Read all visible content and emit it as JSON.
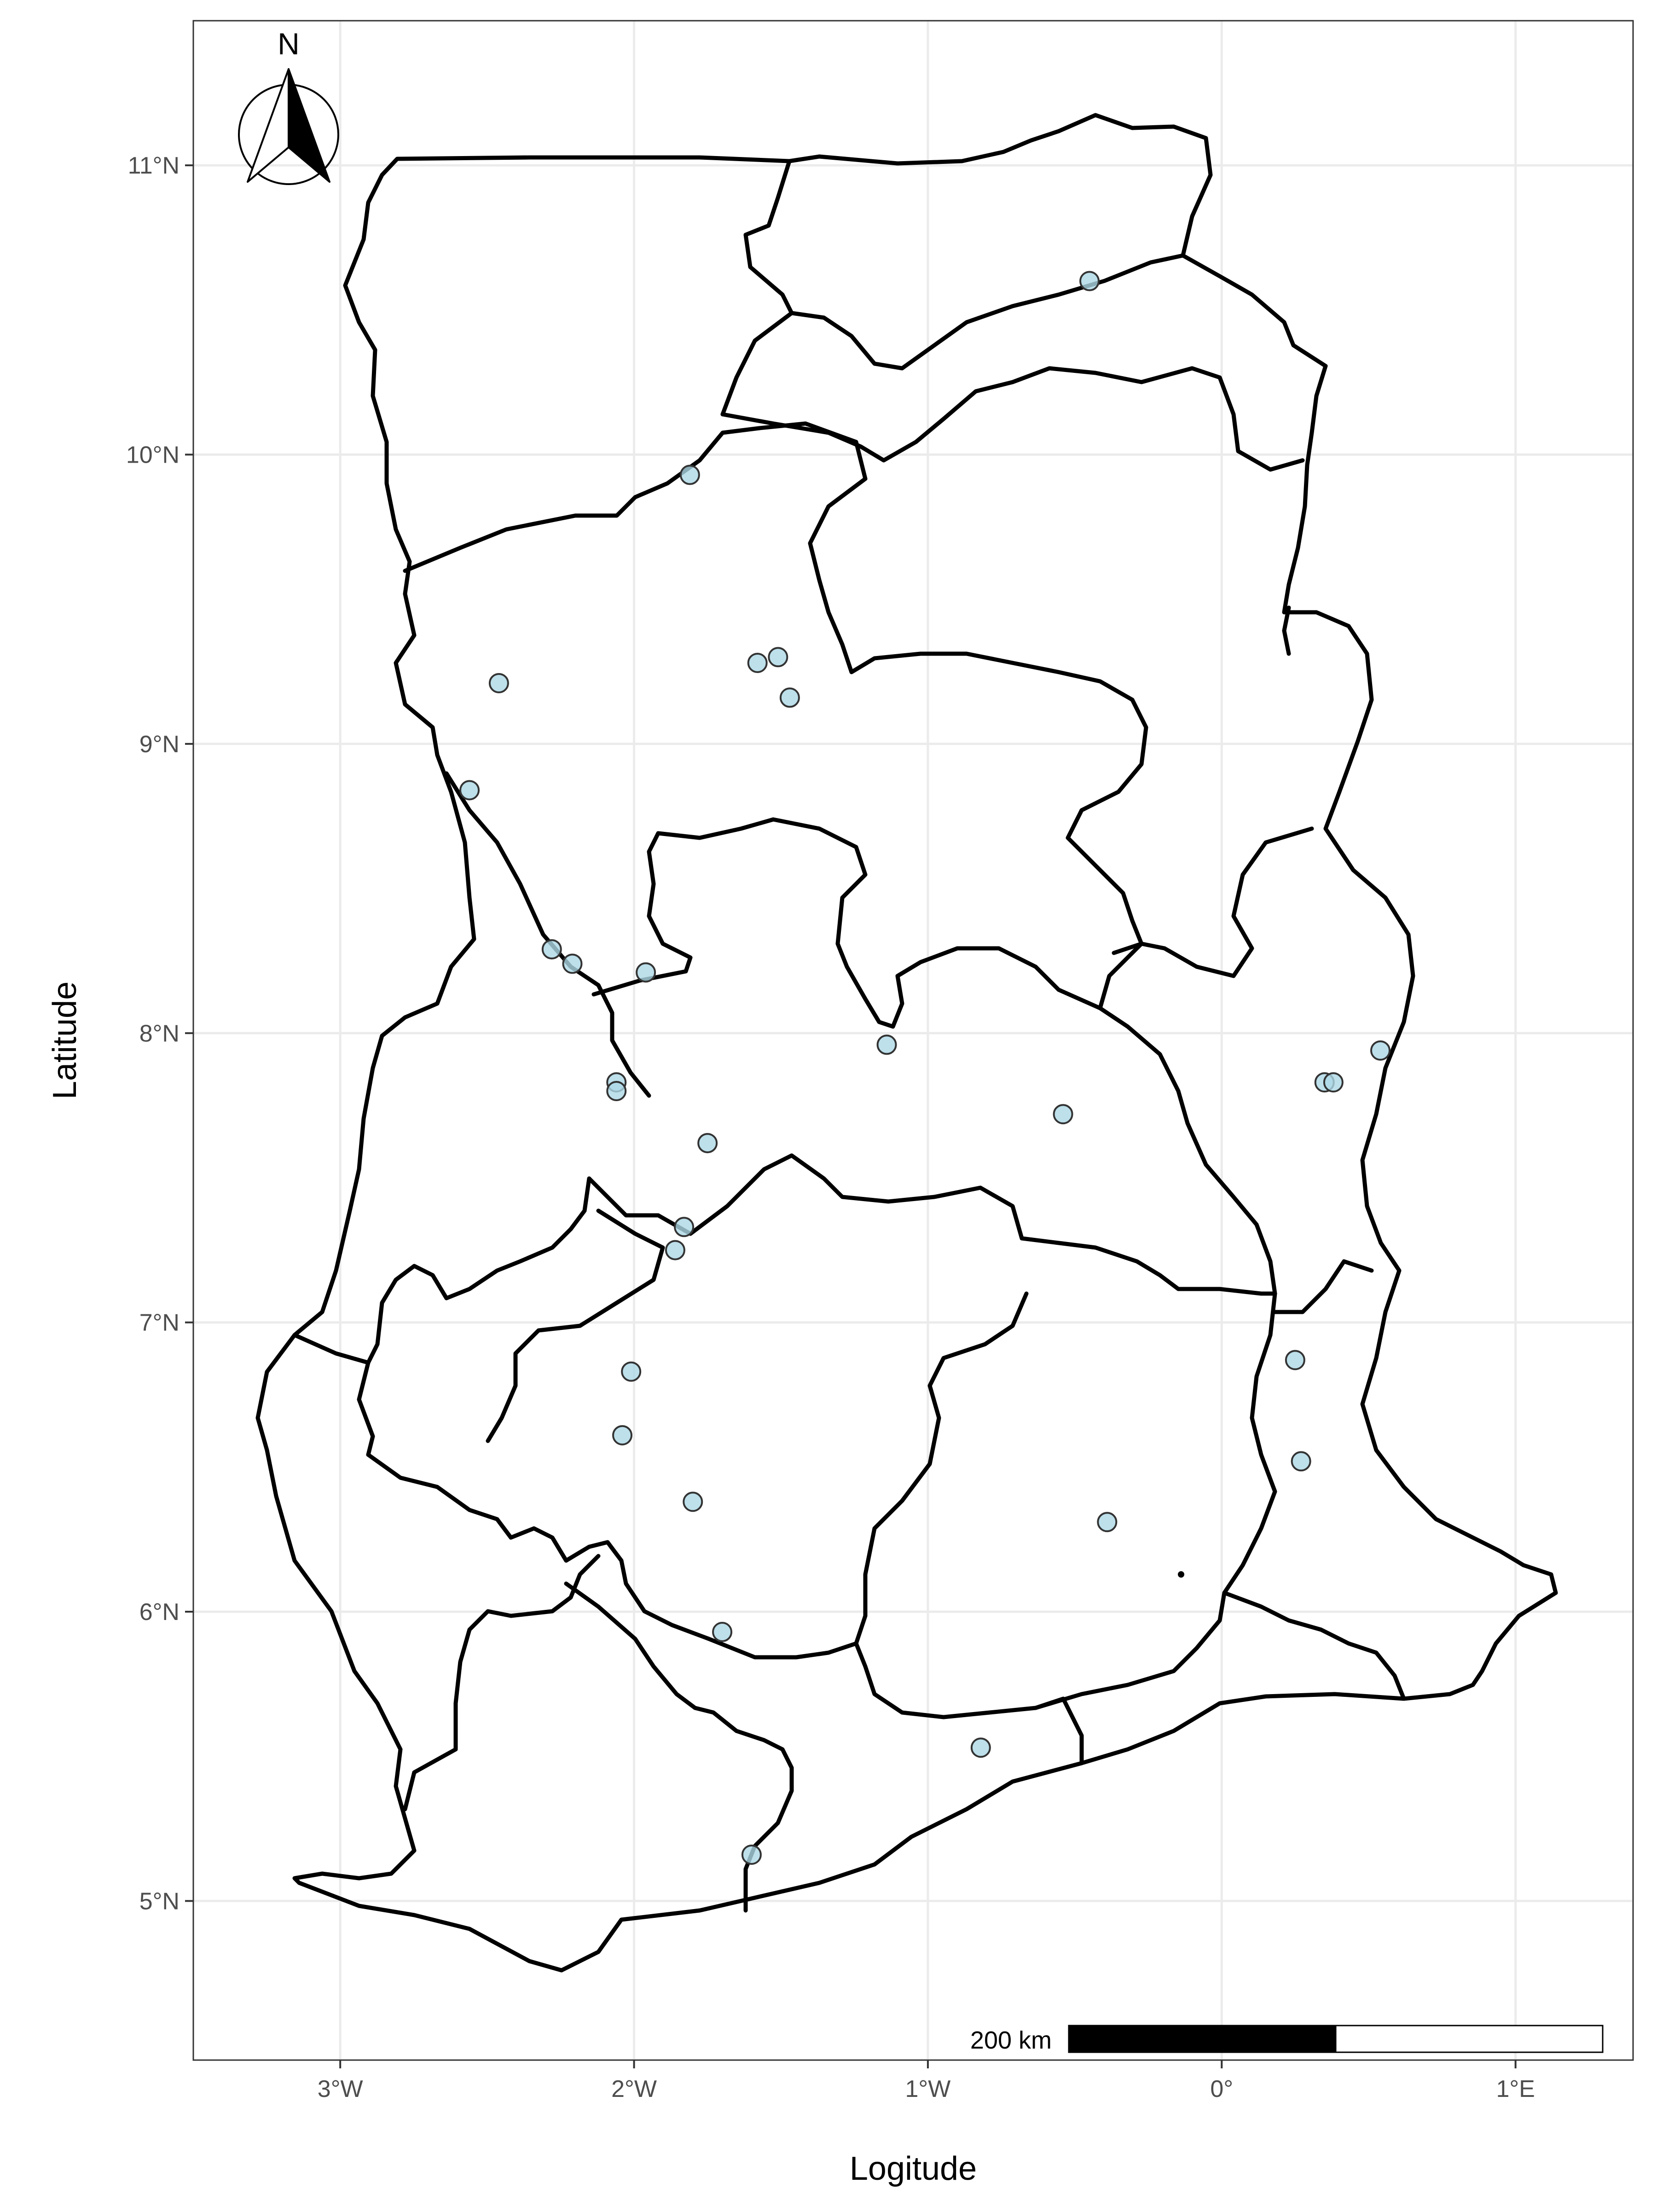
{
  "map": {
    "x_axis_title": "Logitude",
    "y_axis_title": "Latitude",
    "x_ticks": [
      {
        "value": -3,
        "label": "3°W"
      },
      {
        "value": -2,
        "label": "2°W"
      },
      {
        "value": -1,
        "label": "1°W"
      },
      {
        "value": 0,
        "label": "0°"
      },
      {
        "value": 1,
        "label": "1°E"
      }
    ],
    "y_ticks": [
      {
        "value": 5,
        "label": "5°N"
      },
      {
        "value": 6,
        "label": "6°N"
      },
      {
        "value": 7,
        "label": "7°N"
      },
      {
        "value": 8,
        "label": "8°N"
      },
      {
        "value": 9,
        "label": "9°N"
      },
      {
        "value": 10,
        "label": "10°N"
      },
      {
        "value": 11,
        "label": "11°N"
      }
    ],
    "north_arrow_label": "N",
    "scale_bar_label": "200 km",
    "xlim": [
      -3.5,
      1.4
    ],
    "ylim": [
      4.45,
      11.5
    ],
    "grid": true,
    "colors": {
      "point_fill": "#add8e6",
      "point_stroke": "#333333",
      "boundary": "#000000",
      "grid": "#ebebeb",
      "tick_text": "#4d4d4d"
    },
    "points": [
      {
        "lon": -0.45,
        "lat": 10.6
      },
      {
        "lon": -1.81,
        "lat": 9.93
      },
      {
        "lon": -2.46,
        "lat": 9.21
      },
      {
        "lon": -1.58,
        "lat": 9.28
      },
      {
        "lon": -1.51,
        "lat": 9.3
      },
      {
        "lon": -1.47,
        "lat": 9.16
      },
      {
        "lon": -2.56,
        "lat": 8.84
      },
      {
        "lon": -2.28,
        "lat": 8.29
      },
      {
        "lon": -2.21,
        "lat": 8.24
      },
      {
        "lon": -1.96,
        "lat": 8.21
      },
      {
        "lon": -1.14,
        "lat": 7.96
      },
      {
        "lon": -2.06,
        "lat": 7.83
      },
      {
        "lon": -2.06,
        "lat": 7.8
      },
      {
        "lon": -1.75,
        "lat": 7.62
      },
      {
        "lon": -0.54,
        "lat": 7.72
      },
      {
        "lon": 0.35,
        "lat": 7.83
      },
      {
        "lon": 0.38,
        "lat": 7.83
      },
      {
        "lon": 0.54,
        "lat": 7.94
      },
      {
        "lon": -1.83,
        "lat": 7.33
      },
      {
        "lon": -1.86,
        "lat": 7.25
      },
      {
        "lon": -2.01,
        "lat": 6.83
      },
      {
        "lon": -2.04,
        "lat": 6.61
      },
      {
        "lon": -1.8,
        "lat": 6.38
      },
      {
        "lon": 0.25,
        "lat": 6.87
      },
      {
        "lon": 0.27,
        "lat": 6.52
      },
      {
        "lon": -0.39,
        "lat": 6.31
      },
      {
        "lon": -1.7,
        "lat": 5.93
      },
      {
        "lon": -0.82,
        "lat": 5.53
      },
      {
        "lon": -1.6,
        "lat": 5.16
      }
    ]
  }
}
